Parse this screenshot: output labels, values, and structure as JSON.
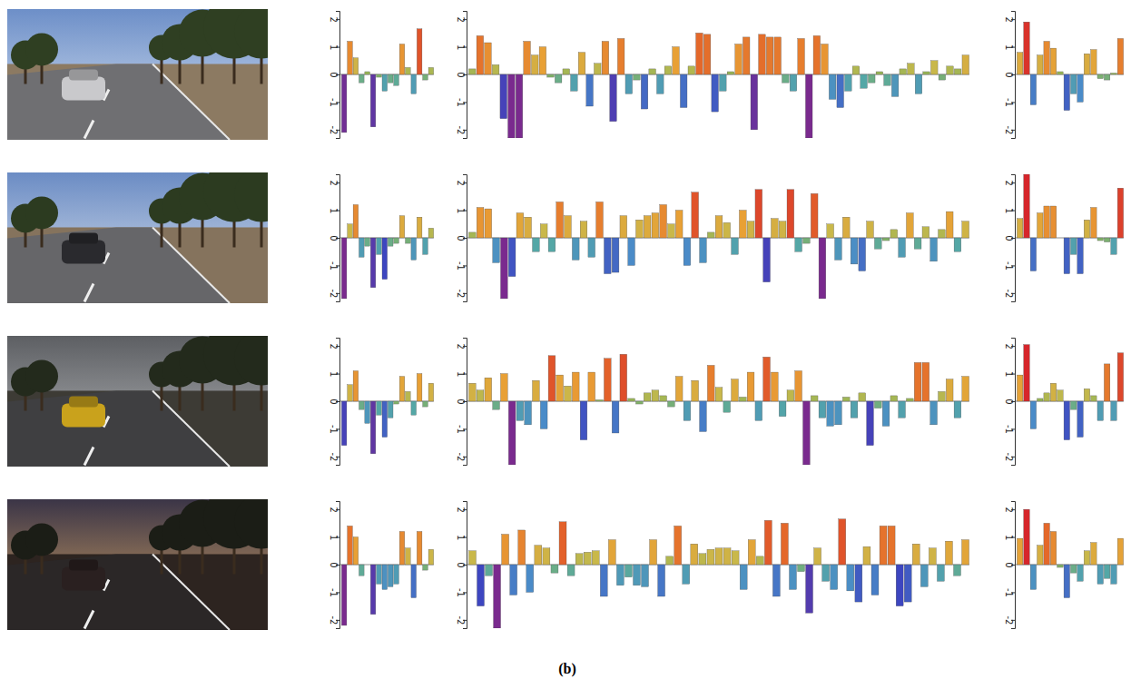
{
  "caption": "(b)",
  "chart_data": [
    {
      "type": "bar",
      "ylim": [
        -2.3,
        2.3
      ],
      "yticks": [
        -2,
        -1,
        0,
        1,
        2
      ],
      "values": [
        -2.1,
        1.2,
        0.6,
        -0.3,
        0.1,
        -1.9,
        -0.1,
        -0.6,
        -0.3,
        -0.4,
        1.1,
        0.25,
        -0.7,
        1.65,
        -0.2,
        0.25
      ]
    },
    {
      "type": "bar",
      "ylim": [
        -2.3,
        2.3
      ],
      "yticks": [
        -2,
        -1,
        0,
        1,
        2
      ],
      "values": [
        0.2,
        1.4,
        1.15,
        0.35,
        -1.6,
        -2.3,
        -2.3,
        1.2,
        0.7,
        1.0,
        -0.1,
        -0.3,
        0.2,
        -0.6,
        0.8,
        -1.15,
        0.4,
        1.2,
        -1.7,
        1.3,
        -0.7,
        -0.2,
        -1.25,
        0.2,
        -0.7,
        0.3,
        1.0,
        -1.2,
        0.3,
        1.5,
        1.45,
        -1.35,
        -0.6,
        0.1,
        1.1,
        1.35,
        -2.0,
        1.45,
        1.35,
        1.35,
        -0.3,
        -0.6,
        1.3,
        -2.3,
        1.4,
        1.1,
        -0.9,
        -1.2,
        -0.6,
        0.3,
        -0.5,
        -0.3,
        0.1,
        -0.4,
        -0.8,
        0.2,
        0.4,
        -0.7,
        0.1,
        0.5,
        -0.2,
        0.3,
        0.2,
        0.7
      ]
    },
    {
      "type": "bar",
      "ylim": [
        -2.3,
        2.3
      ],
      "yticks": [
        -2,
        -1,
        0,
        1,
        2
      ],
      "values": [
        0.8,
        1.9,
        -1.1,
        0.7,
        1.2,
        0.95,
        0.1,
        -1.3,
        -0.7,
        -1.0,
        0.75,
        0.9,
        -0.15,
        -0.2,
        0.05,
        1.3
      ]
    },
    {
      "type": "bar",
      "ylim": [
        -2.3,
        2.3
      ],
      "yticks": [
        -2,
        -1,
        0,
        1,
        2
      ],
      "values": [
        -2.2,
        0.5,
        1.2,
        -0.7,
        -0.3,
        -1.8,
        -0.6,
        -1.5,
        -0.3,
        -0.2,
        0.8,
        -0.2,
        -0.8,
        0.75,
        -0.6,
        0.35
      ]
    },
    {
      "type": "bar",
      "ylim": [
        -2.3,
        2.3
      ],
      "yticks": [
        -2,
        -1,
        0,
        1,
        2
      ],
      "values": [
        0.2,
        1.1,
        1.05,
        -0.9,
        -2.2,
        -1.4,
        0.9,
        0.75,
        -0.5,
        0.5,
        -0.5,
        1.3,
        0.8,
        -0.8,
        0.6,
        -0.7,
        1.3,
        -1.3,
        -1.25,
        0.8,
        -1.0,
        0.65,
        0.8,
        0.9,
        1.2,
        0.5,
        1.0,
        -1.0,
        1.65,
        -0.9,
        0.2,
        0.8,
        0.55,
        -0.6,
        1.0,
        0.6,
        1.75,
        -1.6,
        0.7,
        0.6,
        1.75,
        -0.5,
        -0.2,
        1.6,
        -2.2,
        0.5,
        -0.8,
        0.75,
        -0.95,
        -1.2,
        0.6,
        -0.4,
        -0.1,
        0.3,
        -0.7,
        0.9,
        -0.4,
        0.4,
        -0.85,
        0.3,
        0.95,
        -0.5,
        0.6
      ]
    },
    {
      "type": "bar",
      "ylim": [
        -2.3,
        2.3
      ],
      "yticks": [
        -2,
        -1,
        0,
        1,
        2
      ],
      "values": [
        0.7,
        2.3,
        -1.2,
        0.9,
        1.15,
        1.15,
        0.0,
        -1.3,
        -0.6,
        -1.3,
        0.65,
        1.1,
        -0.1,
        -0.15,
        -0.6,
        1.8
      ]
    },
    {
      "type": "bar",
      "ylim": [
        -2.3,
        2.3
      ],
      "yticks": [
        -2,
        -1,
        0,
        1,
        2
      ],
      "values": [
        -1.6,
        0.6,
        1.1,
        -0.3,
        -0.8,
        -1.9,
        -0.5,
        -1.3,
        -0.6,
        -0.1,
        0.9,
        0.35,
        -0.5,
        1.0,
        -0.2,
        0.65
      ]
    },
    {
      "type": "bar",
      "ylim": [
        -2.3,
        2.3
      ],
      "yticks": [
        -2,
        -1,
        0,
        1,
        2
      ],
      "values": [
        0.65,
        0.4,
        0.85,
        -0.3,
        1.0,
        -2.3,
        -0.7,
        -0.85,
        0.75,
        -1.0,
        1.65,
        0.95,
        0.55,
        1.05,
        -1.4,
        1.05,
        0.05,
        1.55,
        -1.15,
        1.7,
        0.1,
        -0.1,
        0.3,
        0.4,
        0.2,
        -0.2,
        0.9,
        -0.7,
        0.75,
        -1.1,
        1.3,
        0.5,
        -0.4,
        0.8,
        0.15,
        1.05,
        -0.7,
        1.6,
        1.05,
        -0.55,
        0.4,
        1.1,
        -2.3,
        0.2,
        -0.6,
        -0.9,
        -0.85,
        0.15,
        -0.6,
        0.3,
        -1.6,
        -0.25,
        -0.9,
        0.2,
        -0.6,
        0.1,
        1.4,
        1.4,
        -0.85,
        0.35,
        0.8,
        -0.6,
        0.9
      ]
    },
    {
      "type": "bar",
      "ylim": [
        -2.3,
        2.3
      ],
      "yticks": [
        -2,
        -1,
        0,
        1,
        2
      ],
      "values": [
        0.95,
        2.05,
        -1.0,
        0.1,
        0.3,
        0.65,
        0.4,
        -1.4,
        -0.3,
        -1.3,
        0.45,
        0.2,
        -0.7,
        1.35,
        -0.7,
        1.75
      ]
    },
    {
      "type": "bar",
      "ylim": [
        -2.3,
        2.3
      ],
      "yticks": [
        -2,
        -1,
        0,
        1,
        2
      ],
      "values": [
        -2.2,
        1.4,
        1.0,
        -0.4,
        0.0,
        -1.8,
        -0.7,
        -0.9,
        -0.8,
        -0.7,
        1.2,
        0.6,
        -1.2,
        1.2,
        -0.2,
        0.55
      ]
    },
    {
      "type": "bar",
      "ylim": [
        -2.3,
        2.3
      ],
      "yticks": [
        -2,
        -1,
        0,
        1,
        2
      ],
      "values": [
        0.5,
        -1.5,
        -0.4,
        -2.3,
        1.1,
        -1.1,
        1.25,
        -1.0,
        0.7,
        0.6,
        -0.3,
        1.55,
        -0.4,
        0.4,
        0.45,
        0.5,
        -1.15,
        0.9,
        -0.75,
        -0.45,
        -0.75,
        -0.8,
        0.9,
        -1.15,
        0.3,
        1.4,
        -0.7,
        0.75,
        0.4,
        0.55,
        0.6,
        0.6,
        0.5,
        -0.9,
        0.9,
        0.3,
        1.6,
        -1.15,
        1.5,
        -0.9,
        -0.25,
        -1.75,
        0.6,
        -0.6,
        -0.9,
        1.65,
        -0.95,
        -1.35,
        0.65,
        -1.1,
        1.4,
        1.4,
        -1.5,
        -1.35,
        0.75,
        -0.8,
        0.6,
        -0.6,
        0.85,
        -0.4,
        0.9
      ]
    },
    {
      "type": "bar",
      "ylim": [
        -2.3,
        2.3
      ],
      "yticks": [
        -2,
        -1,
        0,
        1,
        2
      ],
      "values": [
        0.95,
        2.0,
        -0.9,
        0.7,
        1.5,
        1.2,
        -0.1,
        -1.2,
        -0.3,
        -0.6,
        0.5,
        0.8,
        -0.7,
        -0.5,
        -0.7,
        0.95
      ]
    }
  ]
}
